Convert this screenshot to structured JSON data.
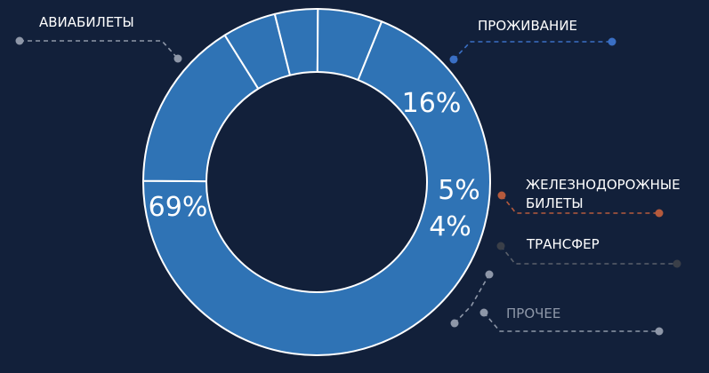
{
  "chart_data": {
    "type": "pie",
    "categories": [
      "АВИАБИЛЕТЫ",
      "ПРОЖИВАНИЕ",
      "ЖЕЛЕЗНОДОРОЖНЫЕ БИЛЕТЫ",
      "ТРАНСФЕР",
      "ПРОЧЕЕ"
    ],
    "values": [
      69,
      16,
      5,
      4,
      6
    ],
    "value_labels": [
      "69%",
      "16%",
      "5%",
      "4%",
      ""
    ],
    "title": "",
    "xlabel": "",
    "ylabel": "",
    "grid": false,
    "legend": "callout labels around the ring"
  },
  "labels": {
    "air": "АВИАБИЛЕТЫ",
    "hotel": "ПРОЖИВАНИЕ",
    "rail_line1": "ЖЕЛЕЗНОДОРОЖНЫЕ",
    "rail_line2": "БИЛЕТЫ",
    "transfer": "ТРАНСФЕР",
    "other": "ПРОЧЕЕ"
  },
  "colors": {
    "background": "#12203a",
    "slice": "#2f73b5",
    "hotel_dot": "#3a6fc4",
    "rail_dot": "#b55a3c",
    "transfer_dot": "#3a3f48",
    "gray_dot": "#8e97a8"
  }
}
